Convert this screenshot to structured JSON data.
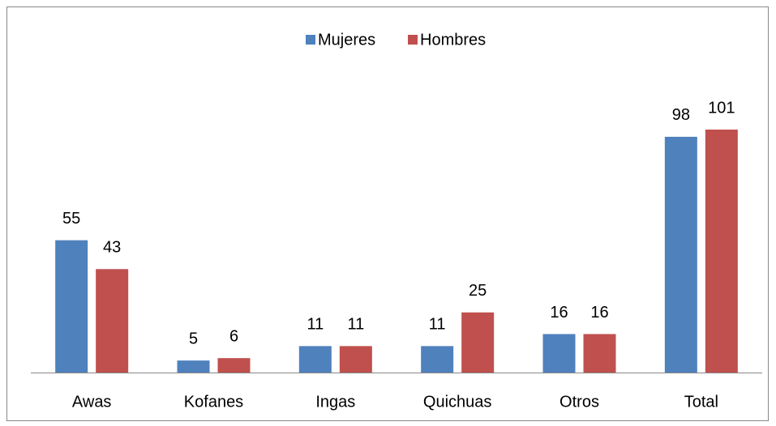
{
  "chart_data": {
    "type": "bar",
    "categories": [
      "Awas",
      "Kofanes",
      "Ingas",
      "Quichuas",
      "Otros",
      "Total"
    ],
    "series": [
      {
        "name": "Mujeres",
        "color": "#4f81bd",
        "values": [
          55,
          5,
          11,
          11,
          16,
          98
        ]
      },
      {
        "name": "Hombres",
        "color": "#c0504d",
        "values": [
          43,
          6,
          11,
          25,
          16,
          101
        ]
      }
    ],
    "legend": "top"
  }
}
